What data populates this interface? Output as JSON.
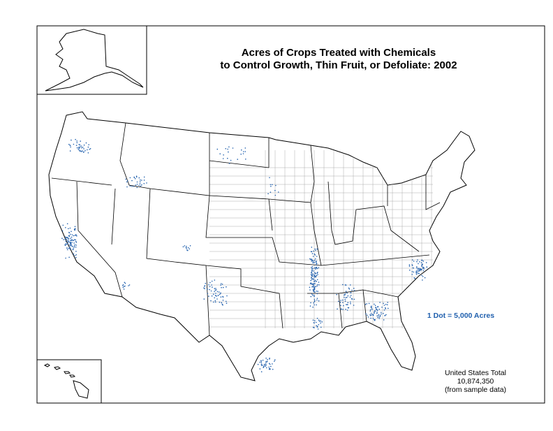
{
  "title": {
    "line1": "Acres of Crops Treated with Chemicals",
    "line2": "to Control Growth, Thin Fruit, or Defoliate:  2002"
  },
  "legend": "1 Dot = 5,000 Acres",
  "total": {
    "label": "United States Total",
    "value": "10,874,350",
    "note": "(from sample data)"
  }
}
